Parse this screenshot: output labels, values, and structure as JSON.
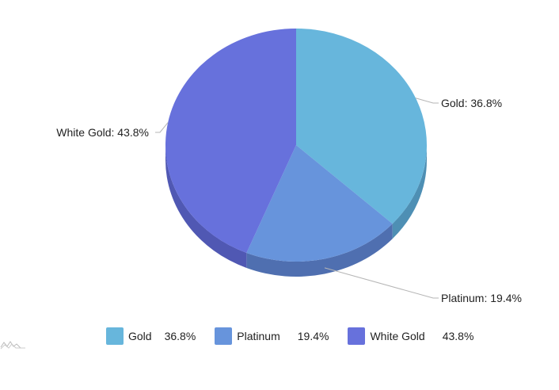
{
  "chart_data": {
    "type": "pie",
    "title": "",
    "slices": [
      {
        "label": "Gold",
        "value": 36.8,
        "color": "#67b6dc",
        "side_color": "#4e8fb4"
      },
      {
        "label": "Platinum",
        "value": 19.4,
        "color": "#6794dc",
        "side_color": "#4f6fb0"
      },
      {
        "label": "White Gold",
        "value": 43.8,
        "color": "#6771dc",
        "side_color": "#5058b3"
      }
    ],
    "slice_labels": [
      "Gold: 36.8%",
      "Platinum: 19.4%",
      "White Gold: 43.8%"
    ],
    "legend_position": "bottom",
    "legend": [
      {
        "name": "Gold",
        "value": "36.8%"
      },
      {
        "name": "Platinum",
        "value": "19.4%"
      },
      {
        "name": "White Gold",
        "value": "43.8%"
      }
    ]
  }
}
